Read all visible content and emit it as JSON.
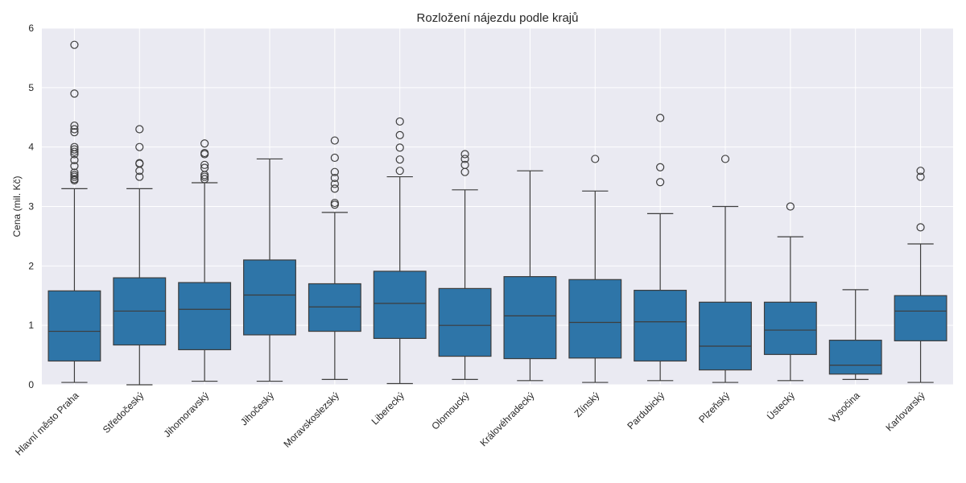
{
  "chart_data": {
    "type": "box",
    "title": "Rozložení nájezdu podle krajů",
    "xlabel": "",
    "ylabel": "Cena (mil. Kč)",
    "ylim": [
      0,
      6
    ],
    "yticks": [
      "0",
      "1",
      "2",
      "3",
      "4",
      "5",
      "6"
    ],
    "grid": true,
    "color": "#2e75a8",
    "categories": [
      "Hlavní město Praha",
      "Středočeský",
      "Jihomoravský",
      "Jihočeský",
      "Moravskoslezský",
      "Liberecký",
      "Olomoucký",
      "Královéhradecký",
      "Zlínský",
      "Pardubický",
      "Plzeňský",
      "Ústecký",
      "Vysočina",
      "Karlovarský"
    ],
    "boxes": [
      {
        "whisker_low": 0.04,
        "q1": 0.4,
        "median": 0.9,
        "q3": 1.58,
        "whisker_high": 3.3,
        "outliers": [
          3.44,
          3.46,
          3.5,
          3.53,
          3.57,
          3.68,
          3.78,
          3.88,
          3.92,
          3.96,
          4.0,
          4.25,
          4.3,
          4.36,
          4.9,
          5.72
        ]
      },
      {
        "whisker_low": 0.0,
        "q1": 0.67,
        "median": 1.24,
        "q3": 1.8,
        "whisker_high": 3.3,
        "outliers": [
          3.5,
          3.6,
          3.72,
          3.73,
          4.0,
          4.3
        ]
      },
      {
        "whisker_low": 0.06,
        "q1": 0.59,
        "median": 1.27,
        "q3": 1.72,
        "whisker_high": 3.4,
        "outliers": [
          3.46,
          3.5,
          3.53,
          3.65,
          3.7,
          3.88,
          3.9,
          4.06
        ]
      },
      {
        "whisker_low": 0.06,
        "q1": 0.84,
        "median": 1.51,
        "q3": 2.1,
        "whisker_high": 3.8,
        "outliers": []
      },
      {
        "whisker_low": 0.09,
        "q1": 0.9,
        "median": 1.31,
        "q3": 1.7,
        "whisker_high": 2.9,
        "outliers": [
          3.03,
          3.06,
          3.3,
          3.38,
          3.48,
          3.58,
          3.82,
          4.11
        ]
      },
      {
        "whisker_low": 0.02,
        "q1": 0.78,
        "median": 1.37,
        "q3": 1.91,
        "whisker_high": 3.5,
        "outliers": [
          3.6,
          3.79,
          3.99,
          4.2,
          4.43
        ]
      },
      {
        "whisker_low": 0.09,
        "q1": 0.48,
        "median": 1.0,
        "q3": 1.62,
        "whisker_high": 3.28,
        "outliers": [
          3.58,
          3.7,
          3.8,
          3.88
        ]
      },
      {
        "whisker_low": 0.07,
        "q1": 0.44,
        "median": 1.16,
        "q3": 1.82,
        "whisker_high": 3.6,
        "outliers": []
      },
      {
        "whisker_low": 0.04,
        "q1": 0.45,
        "median": 1.05,
        "q3": 1.77,
        "whisker_high": 3.26,
        "outliers": [
          3.8
        ]
      },
      {
        "whisker_low": 0.07,
        "q1": 0.4,
        "median": 1.06,
        "q3": 1.59,
        "whisker_high": 2.88,
        "outliers": [
          3.41,
          3.66,
          4.49
        ]
      },
      {
        "whisker_low": 0.04,
        "q1": 0.25,
        "median": 0.65,
        "q3": 1.39,
        "whisker_high": 3.0,
        "outliers": [
          3.8
        ]
      },
      {
        "whisker_low": 0.07,
        "q1": 0.51,
        "median": 0.92,
        "q3": 1.39,
        "whisker_high": 2.49,
        "outliers": [
          3.0
        ]
      },
      {
        "whisker_low": 0.09,
        "q1": 0.18,
        "median": 0.33,
        "q3": 0.75,
        "whisker_high": 1.6,
        "outliers": []
      },
      {
        "whisker_low": 0.04,
        "q1": 0.74,
        "median": 1.24,
        "q3": 1.5,
        "whisker_high": 2.37,
        "outliers": [
          2.65,
          3.5,
          3.6
        ]
      }
    ]
  }
}
